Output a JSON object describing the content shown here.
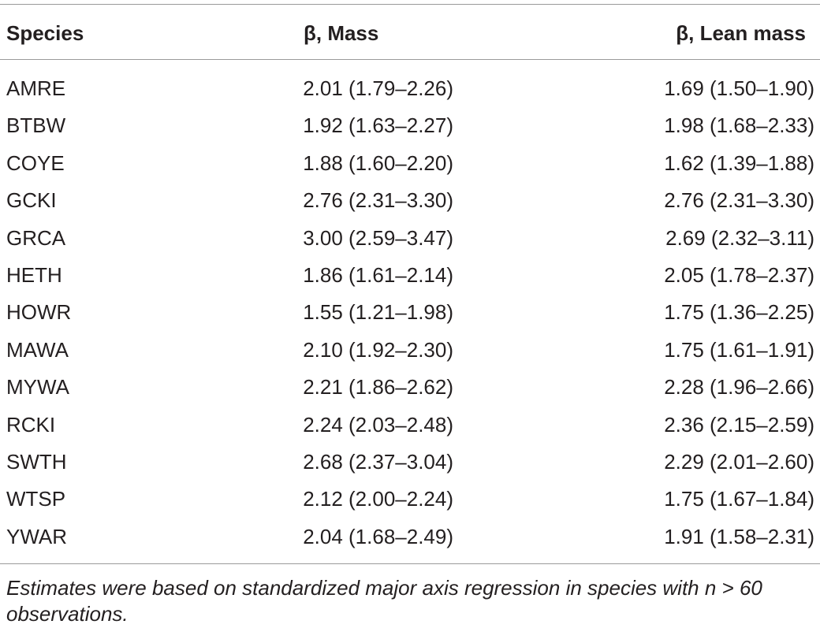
{
  "table": {
    "header": [
      "Species",
      "β, Mass",
      "β, Lean mass"
    ],
    "rows": [
      [
        "AMRE",
        "2.01 (1.79–2.26)",
        "1.69 (1.50–1.90)"
      ],
      [
        "BTBW",
        "1.92 (1.63–2.27)",
        "1.98 (1.68–2.33)"
      ],
      [
        "COYE",
        "1.88 (1.60–2.20)",
        "1.62 (1.39–1.88)"
      ],
      [
        "GCKI",
        "2.76 (2.31–3.30)",
        "2.76 (2.31–3.30)"
      ],
      [
        "GRCA",
        "3.00 (2.59–3.47)",
        "2.69 (2.32–3.11)"
      ],
      [
        "HETH",
        "1.86 (1.61–2.14)",
        "2.05 (1.78–2.37)"
      ],
      [
        "HOWR",
        "1.55 (1.21–1.98)",
        "1.75 (1.36–2.25)"
      ],
      [
        "MAWA",
        "2.10 (1.92–2.30)",
        "1.75 (1.61–1.91)"
      ],
      [
        "MYWA",
        "2.21 (1.86–2.62)",
        "2.28 (1.96–2.66)"
      ],
      [
        "RCKI",
        "2.24 (2.03–2.48)",
        "2.36 (2.15–2.59)"
      ],
      [
        "SWTH",
        "2.68 (2.37–3.04)",
        "2.29 (2.01–2.60)"
      ],
      [
        "WTSP",
        "2.12 (2.00–2.24)",
        "1.75 (1.67–1.84)"
      ],
      [
        "YWAR",
        "2.04 (1.68–2.49)",
        "1.91 (1.58–2.31)"
      ]
    ],
    "footnote": "Estimates were based on standardized major axis regression in species with n > 60 observations."
  }
}
